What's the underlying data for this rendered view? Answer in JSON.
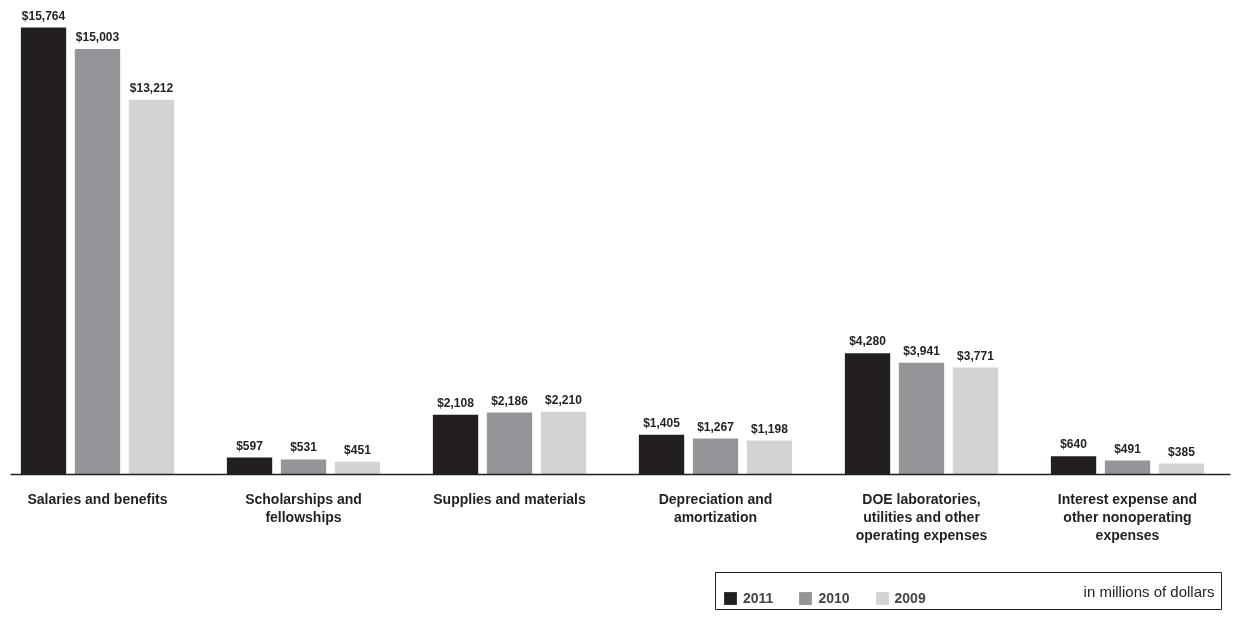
{
  "chart_data": {
    "type": "bar",
    "categories": [
      "Salaries and benefits",
      "Scholarships and fellowships",
      "Supplies and materials",
      "Depreciation and amortization",
      "DOE laboratories, utilities and other operating expenses",
      "Interest expense and other nonoperating expenses"
    ],
    "series": [
      {
        "name": "2011",
        "color": "#231f20",
        "values": [
          15764,
          597,
          2108,
          1405,
          4280,
          640
        ],
        "value_labels": [
          "$15,764",
          "$597",
          "$2,108",
          "$1,405",
          "$4,280",
          "$640"
        ]
      },
      {
        "name": "2010",
        "color": "#939598",
        "values": [
          15003,
          531,
          2186,
          1267,
          3941,
          491
        ],
        "value_labels": [
          "$15,003",
          "$531",
          "$2,186",
          "$1,267",
          "$3,941",
          "$491"
        ]
      },
      {
        "name": "2009",
        "color": "#d1d3d4",
        "values": [
          13212,
          451,
          2210,
          1198,
          3771,
          385
        ],
        "value_labels": [
          "$13,212",
          "$451",
          "$2,210",
          "$1,198",
          "$3,771",
          "$385"
        ]
      }
    ],
    "legend": "bottom right",
    "legend_title": "in millions of dollars",
    "grid": false
  }
}
